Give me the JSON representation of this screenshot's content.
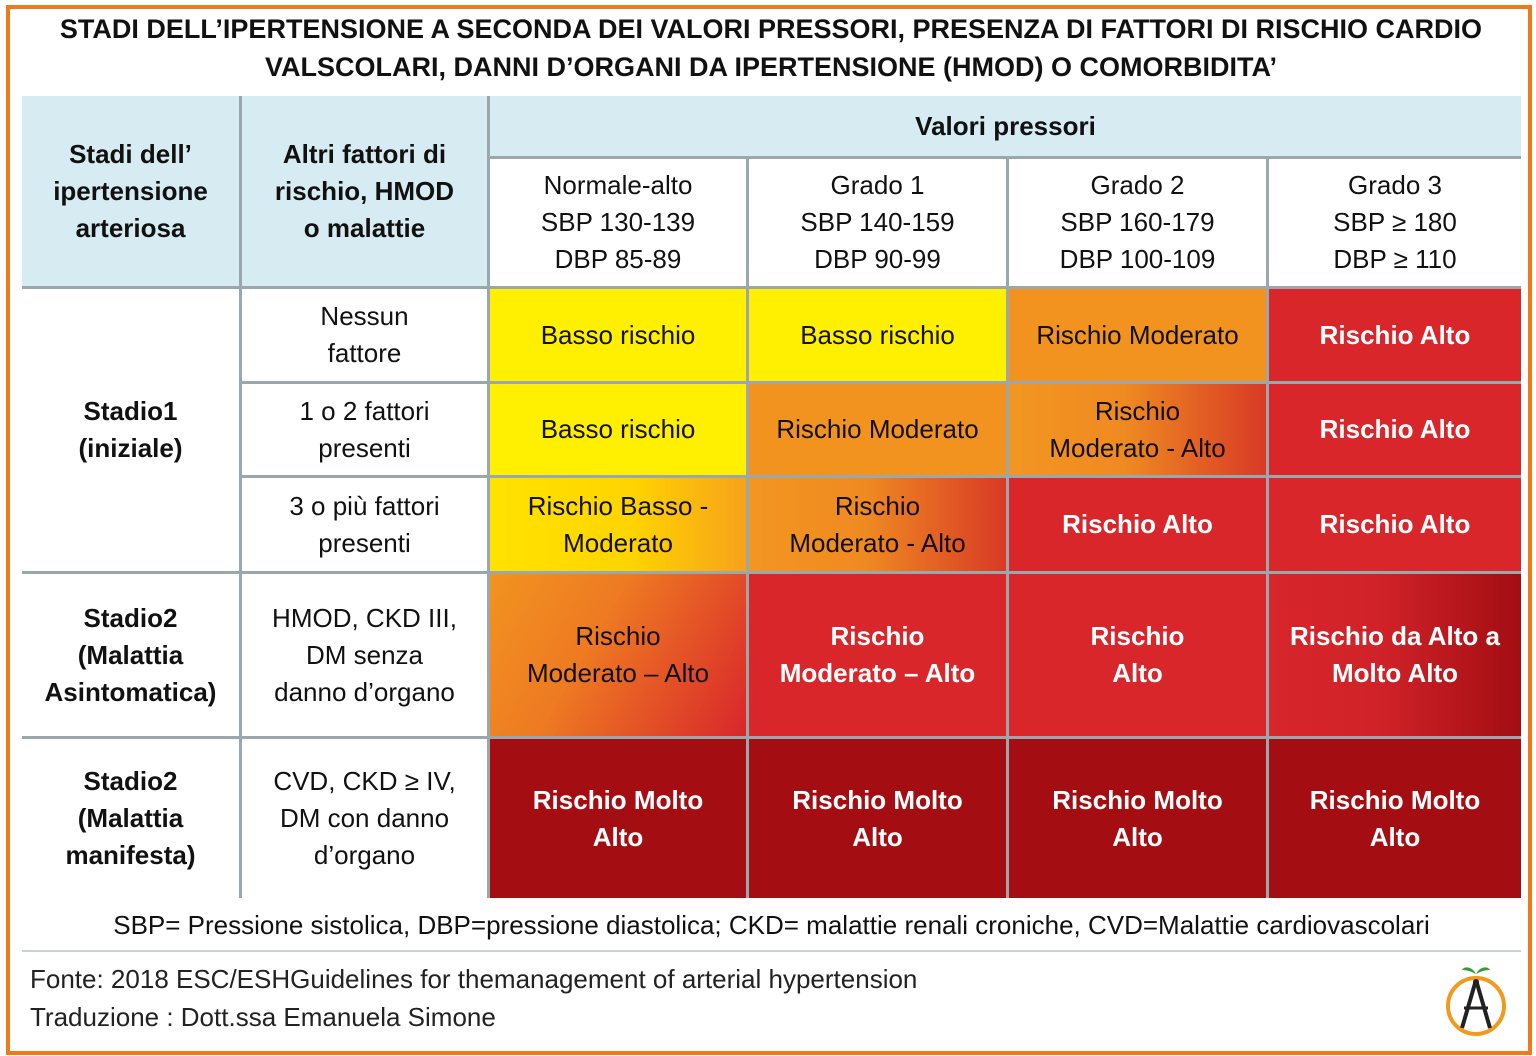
{
  "title": {
    "line1": "STADI DELL’IPERTENSIONE A SECONDA DEI VALORI PRESSORI, PRESENZA DI FATTORI DI RISCHIO CARDIO",
    "line2": "VALSCOLARI, DANNI D’ORGANI DA IPERTENSIONE (HMOD) O COMORBIDITA’"
  },
  "table": {
    "col1_header": "Stadi dell’\nipertensione\narteriosa",
    "col2_header": "Altri fattori di\nrischio, HMOD\no malattie",
    "group_header": "Valori pressori",
    "grades": [
      "Normale-alto\nSBP 130-139\nDBP  85-89",
      "Grado 1\nSBP 140-159\nDBP  90-99",
      "Grado 2\nSBP 160-179\nDBP  100-109",
      "Grado 3\nSBP ≥ 180\nDBP ≥ 110"
    ],
    "stages": [
      "Stadio1\n(iniziale)",
      "Stadio2\n(Malattia\nAsintomatica)",
      "Stadio2\n(Malattia\nmanifesta)"
    ],
    "factors": [
      "Nessun\nfattore",
      "1 o 2 fattori\npresenti",
      "3 o più fattori\npresenti",
      "HMOD, CKD III,\nDM senza\ndanno d’organo",
      "CVD, CKD ≥ IV,\nDM con danno\nd’organo"
    ],
    "risk_rows": [
      [
        "Basso rischio",
        "Basso rischio",
        "Rischio Moderato",
        "Rischio Alto"
      ],
      [
        "Basso rischio",
        "Rischio Moderato",
        "Rischio\nModerato - Alto",
        "Rischio Alto"
      ],
      [
        "Rischio Basso -\nModerato",
        "Rischio\nModerato - Alto",
        "Rischio Alto",
        "Rischio Alto"
      ],
      [
        "Rischio\nModerato – Alto",
        "Rischio\nModerato – Alto",
        "Rischio\nAlto",
        "Rischio da Alto a\nMolto Alto"
      ],
      [
        "Rischio Molto\nAlto",
        "Rischio Molto\nAlto",
        "Rischio Molto\nAlto",
        "Rischio Molto\nAlto"
      ]
    ]
  },
  "colors": {
    "border": "#f07a1a",
    "header_bg": "#d6ecf2",
    "low": "#ffef00",
    "moderate": "#f29320",
    "high": "#d8262b",
    "very_high": "#a40e12"
  },
  "legend": "SBP= Pressione sistolica, DBP=pressione diastolica; CKD= malattie renali croniche, CVD=Malattie cardiovascolari",
  "footer": {
    "source": "Fonte: 2018 ESC/ESHGuidelines for themanagement of arterial hypertension",
    "translation": "Traduzione : Dott.ssa Emanuela Simone"
  },
  "logo_icon": "orange-compass-logo-icon"
}
